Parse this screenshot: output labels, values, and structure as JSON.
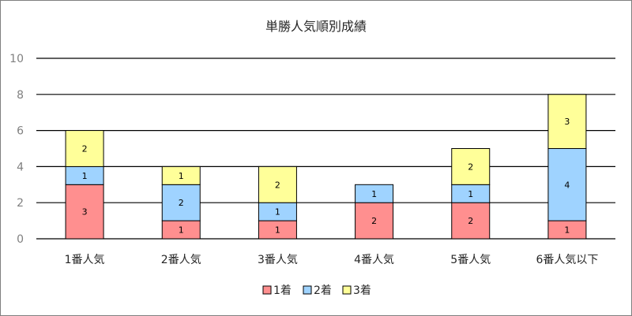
{
  "chart_data": {
    "type": "bar",
    "stacked": true,
    "title": "単勝人気順別成績",
    "xlabel": "",
    "ylabel": "",
    "ylim": [
      0,
      10
    ],
    "yticks": [
      0,
      2,
      4,
      6,
      8,
      10
    ],
    "grid": true,
    "legend_position": "bottom",
    "categories": [
      "1番人気",
      "2番人気",
      "3番人気",
      "4番人気",
      "5番人気",
      "6番人気以下"
    ],
    "series": [
      {
        "name": "1着",
        "color": "#ff8f8f",
        "values": [
          3,
          1,
          1,
          2,
          2,
          1
        ]
      },
      {
        "name": "2着",
        "color": "#9fd3ff",
        "values": [
          1,
          2,
          1,
          1,
          1,
          4
        ]
      },
      {
        "name": "3着",
        "color": "#ffff99",
        "values": [
          2,
          1,
          2,
          0,
          2,
          3
        ]
      }
    ]
  }
}
